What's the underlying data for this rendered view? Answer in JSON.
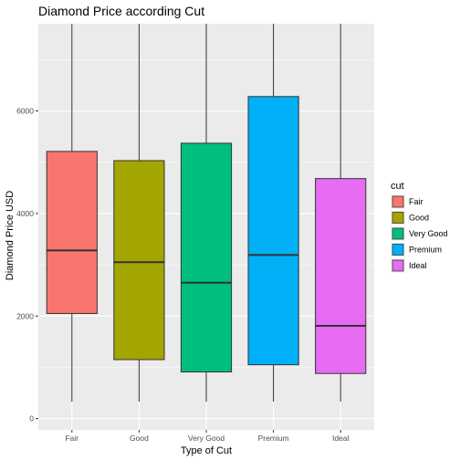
{
  "chart_data": {
    "type": "boxplot",
    "title": "Diamond Price according Cut",
    "xlabel": "Type of Cut",
    "ylabel": "Diamond Price USD",
    "ylim": [
      -220,
      7700
    ],
    "yticks": [
      0,
      2000,
      4000,
      6000
    ],
    "grid": true,
    "legend": {
      "title": "cut",
      "position": "right"
    },
    "categories": [
      "Fair",
      "Good",
      "Very Good",
      "Premium",
      "Ideal"
    ],
    "colors": [
      "#F8766D",
      "#A3A500",
      "#00BF7D",
      "#00B0F6",
      "#E76BF3"
    ],
    "boxes": [
      {
        "name": "Fair",
        "whisker_low": 330,
        "q1": 2050,
        "median": 3280,
        "q3": 5210,
        "whisker_high": 7700
      },
      {
        "name": "Good",
        "whisker_low": 330,
        "q1": 1150,
        "median": 3050,
        "q3": 5030,
        "whisker_high": 7700
      },
      {
        "name": "Very Good",
        "whisker_low": 330,
        "q1": 910,
        "median": 2650,
        "q3": 5370,
        "whisker_high": 7700
      },
      {
        "name": "Premium",
        "whisker_low": 330,
        "q1": 1050,
        "median": 3190,
        "q3": 6280,
        "whisker_high": 7700
      },
      {
        "name": "Ideal",
        "whisker_low": 330,
        "q1": 880,
        "median": 1810,
        "q3": 4680,
        "whisker_high": 7700
      }
    ]
  }
}
